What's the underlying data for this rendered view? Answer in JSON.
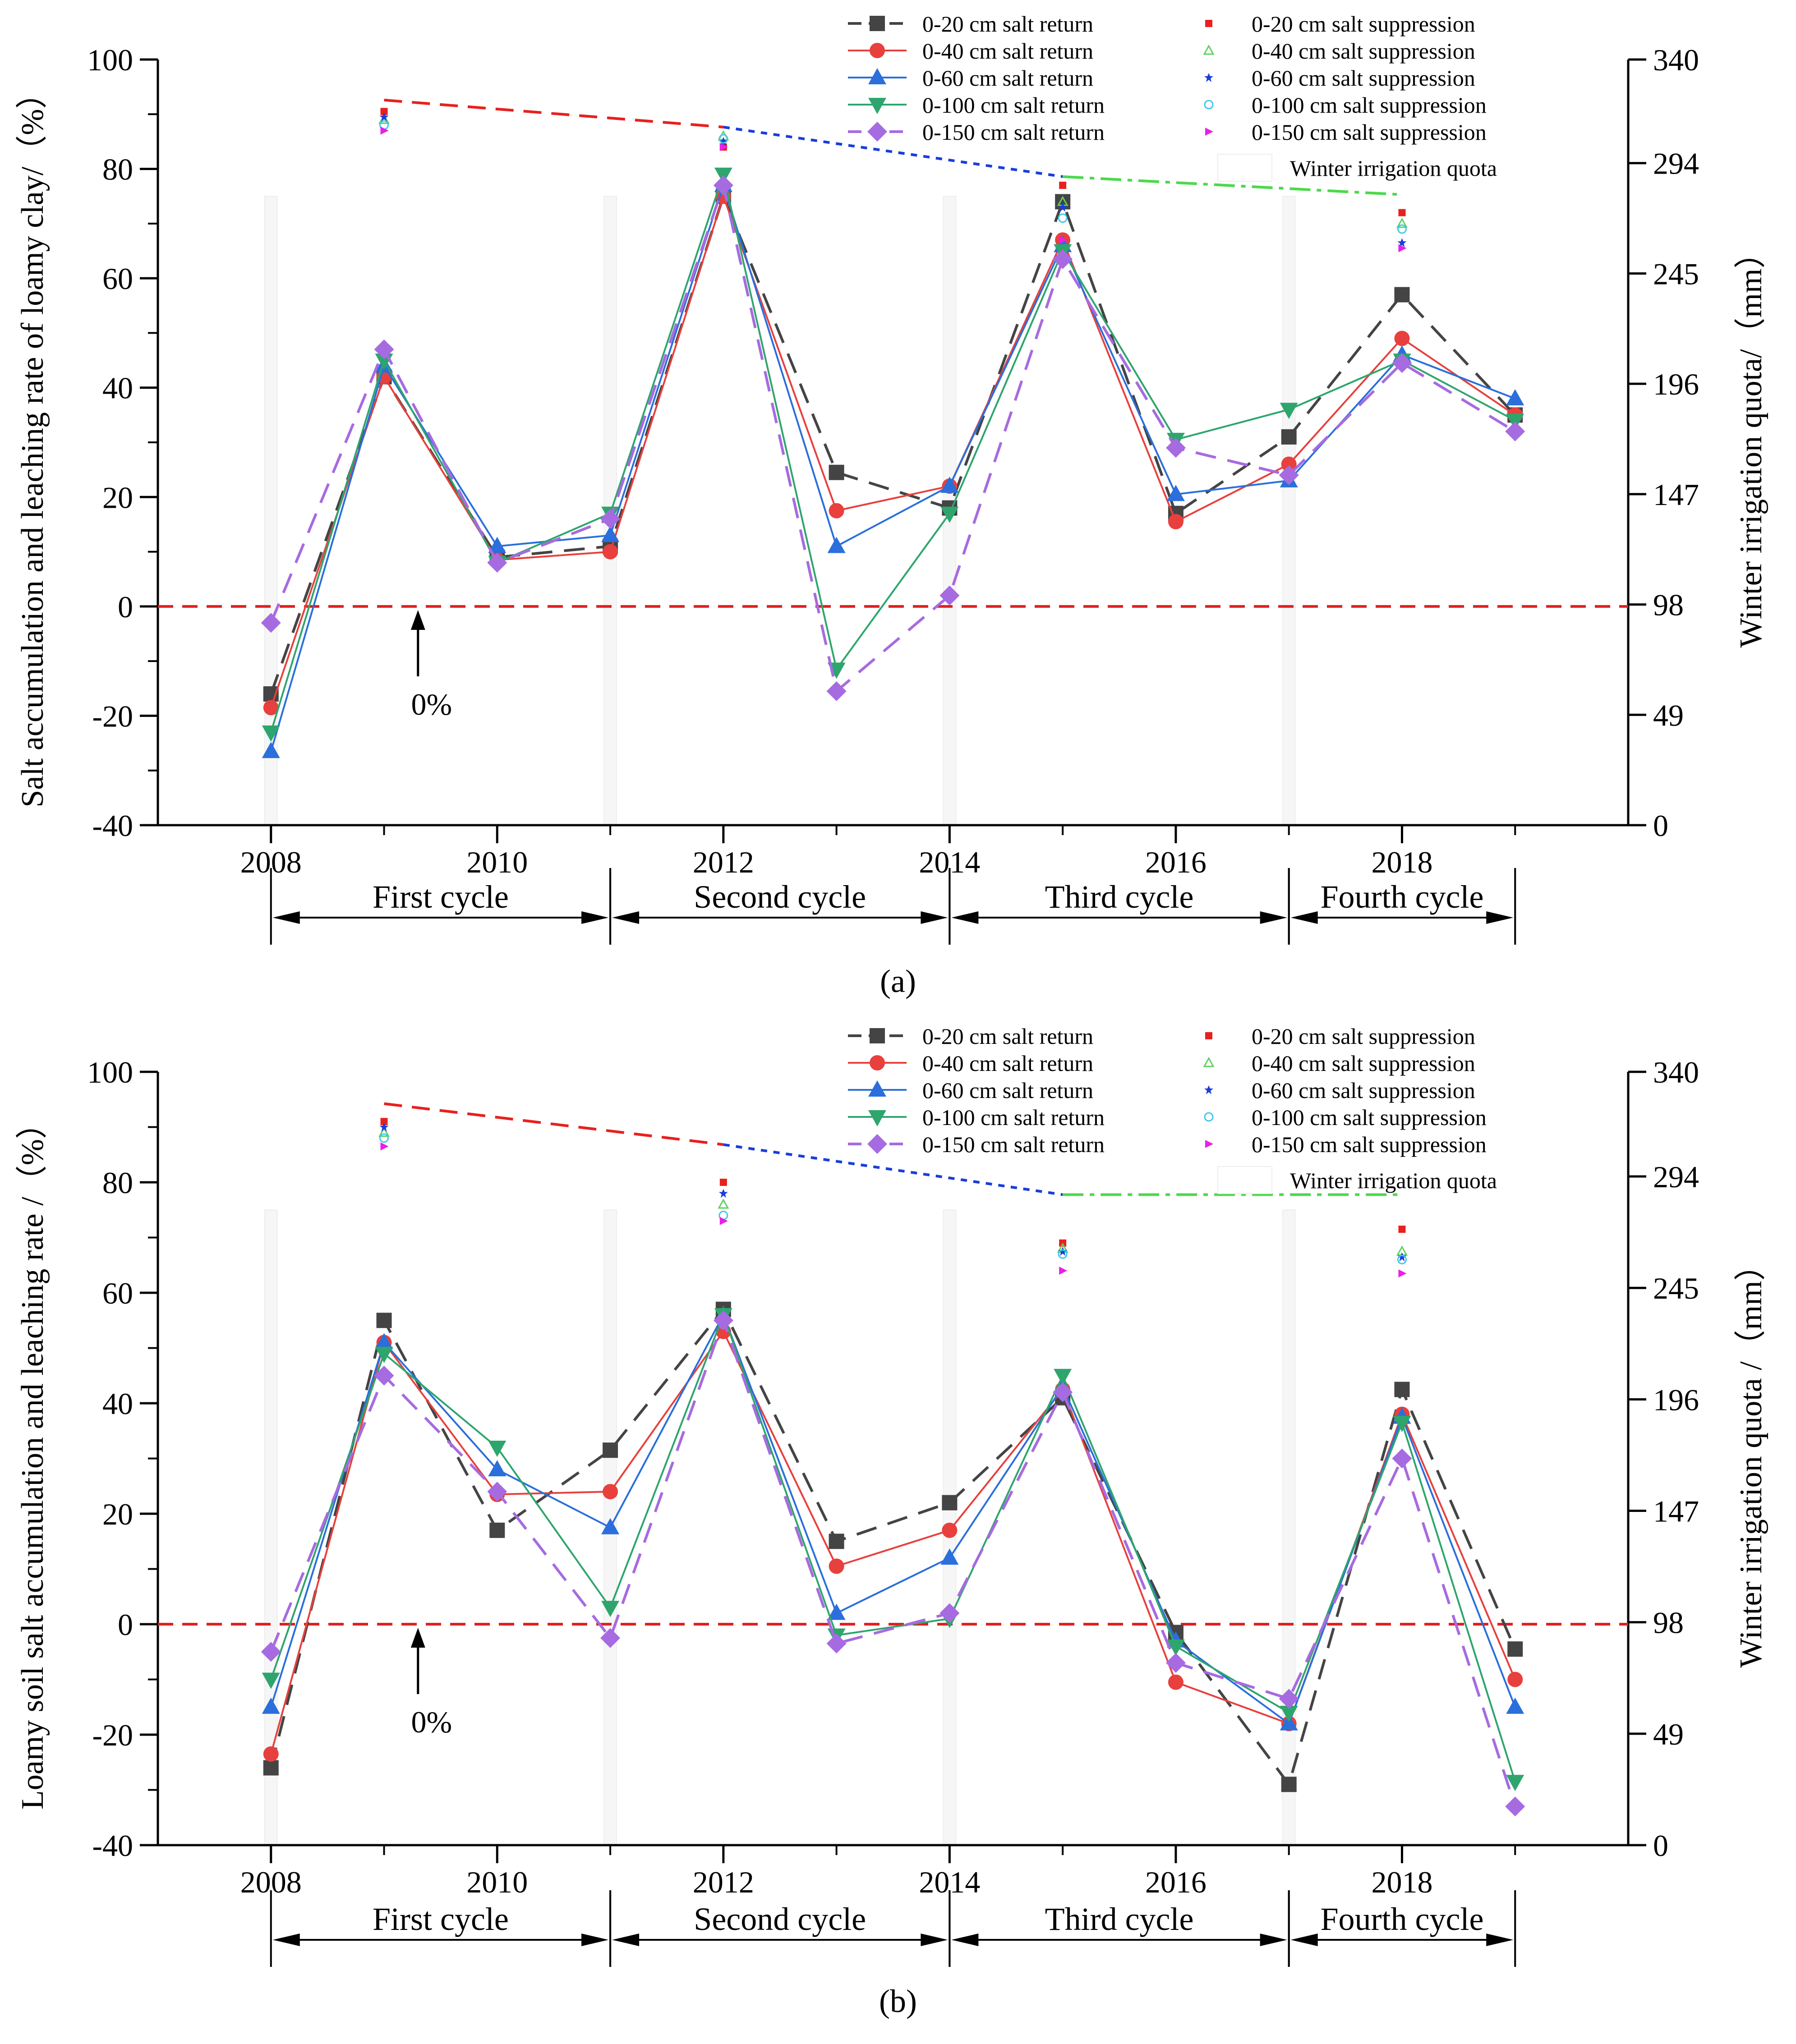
{
  "chart_data": [
    {
      "type": "line",
      "panel_label": "(a)",
      "ylabel_left": "Salt accumulation and leaching rate of loamy clay/（%）",
      "ylabel_right": "Winter irrigation quota/（mm）",
      "xlabel": "",
      "x_ticks": [
        "2008",
        "2010",
        "2012",
        "2014",
        "2016",
        "2018"
      ],
      "y_ticks_left": [
        "-40",
        "-20",
        "0",
        "20",
        "40",
        "60",
        "80",
        "100"
      ],
      "y_ticks_right": [
        "0",
        "49",
        "98",
        "147",
        "196",
        "245",
        "294",
        "340"
      ],
      "ylim_left": [
        -40,
        100
      ],
      "ylim_right": [
        0,
        340
      ],
      "xlim": [
        2007,
        2020
      ],
      "zero_annotation": "0%",
      "cycles": [
        {
          "label": "First cycle",
          "start": 2008,
          "end": 2011
        },
        {
          "label": "Second cycle",
          "start": 2011,
          "end": 2014
        },
        {
          "label": "Third cycle",
          "start": 2014,
          "end": 2017
        },
        {
          "label": "Fourth cycle",
          "start": 2017,
          "end": 2019
        }
      ],
      "series": [
        {
          "name": "0-20 cm salt return",
          "color": "#444444",
          "dash": "dash",
          "marker": "square",
          "x": [
            2008,
            2009,
            2010,
            2011,
            2012,
            2013,
            2014,
            2015,
            2016,
            2017,
            2018,
            2019
          ],
          "values": [
            -16,
            42,
            9,
            11,
            75,
            24.5,
            18,
            74,
            17,
            31,
            57,
            35
          ]
        },
        {
          "name": "0-40 cm salt return",
          "color": "#e8403d",
          "dash": "solid",
          "marker": "circle",
          "x": [
            2008,
            2009,
            2010,
            2011,
            2012,
            2013,
            2014,
            2015,
            2016,
            2017,
            2018,
            2019
          ],
          "values": [
            -18.5,
            42,
            8.5,
            10,
            75,
            17.5,
            22,
            67,
            15.5,
            26,
            49,
            35
          ]
        },
        {
          "name": "0-60 cm salt return",
          "color": "#2a6fdb",
          "dash": "solid",
          "marker": "triangle-up",
          "x": [
            2008,
            2009,
            2010,
            2011,
            2012,
            2013,
            2014,
            2015,
            2016,
            2017,
            2018,
            2019
          ],
          "values": [
            -26.5,
            44,
            11,
            13,
            77,
            11,
            22,
            66,
            20.5,
            23,
            46,
            38
          ]
        },
        {
          "name": "0-100 cm salt return",
          "color": "#2ea56d",
          "dash": "solid",
          "marker": "triangle-down",
          "x": [
            2008,
            2009,
            2010,
            2011,
            2012,
            2013,
            2014,
            2015,
            2016,
            2017,
            2018,
            2019
          ],
          "values": [
            -23,
            45,
            8,
            17,
            79,
            -11.5,
            17,
            65,
            30.5,
            36,
            45,
            34
          ]
        },
        {
          "name": "0-150 cm salt return",
          "color": "#a66be0",
          "dash": "dash",
          "marker": "diamond",
          "x": [
            2008,
            2009,
            2010,
            2011,
            2012,
            2013,
            2014,
            2015,
            2016,
            2017,
            2018,
            2019
          ],
          "values": [
            -3,
            47,
            8,
            16,
            77,
            -15.5,
            2,
            63.5,
            29,
            24,
            44.5,
            32
          ]
        }
      ],
      "suppression_series": [
        {
          "name": "0-20 cm salt suppression",
          "color": "#e8201e",
          "marker": "square-small",
          "x": [
            2009,
            2012,
            2015,
            2018
          ],
          "values": [
            90.5,
            84,
            77,
            72
          ]
        },
        {
          "name": "0-40 cm salt suppression",
          "color": "#5fd15f",
          "marker": "triangle-open",
          "x": [
            2009,
            2012,
            2015,
            2018
          ],
          "values": [
            89,
            86,
            74,
            70
          ]
        },
        {
          "name": "0-60 cm salt suppression",
          "color": "#1a3ddb",
          "marker": "star",
          "x": [
            2009,
            2012,
            2015,
            2018
          ],
          "values": [
            89.5,
            85,
            73,
            66.5
          ]
        },
        {
          "name": "0-100 cm salt suppression",
          "color": "#40c8e8",
          "marker": "circle-open",
          "x": [
            2009,
            2012,
            2015,
            2018
          ],
          "values": [
            88,
            85.5,
            71,
            69
          ]
        },
        {
          "name": "0-150 cm salt suppression",
          "color": "#e820e8",
          "marker": "triangle-right",
          "x": [
            2009,
            2012,
            2015,
            2018
          ],
          "values": [
            87,
            84,
            67,
            65.5
          ]
        }
      ],
      "winter_irrigation_quota": {
        "name": "Winter irrigation quota",
        "x": [
          2009,
          2012,
          2015,
          2018
        ],
        "values": [
          322,
          310,
          288,
          280
        ],
        "segment_colors": [
          "#e8201e",
          "#1a3ddb",
          "#4cd94c"
        ]
      }
    },
    {
      "type": "line",
      "panel_label": "(b)",
      "ylabel_left": "Loamy soil salt accumulation and leaching rate /（%）",
      "ylabel_right": "Winter irrigation quota /（mm）",
      "xlabel": "",
      "x_ticks": [
        "2008",
        "2010",
        "2012",
        "2014",
        "2016",
        "2018"
      ],
      "y_ticks_left": [
        "-40",
        "-20",
        "0",
        "20",
        "40",
        "60",
        "80",
        "100"
      ],
      "y_ticks_right": [
        "0",
        "49",
        "98",
        "147",
        "196",
        "245",
        "294",
        "340"
      ],
      "ylim_left": [
        -40,
        100
      ],
      "ylim_right": [
        0,
        340
      ],
      "xlim": [
        2007,
        2020
      ],
      "zero_annotation": "0%",
      "cycles": [
        {
          "label": "First cycle",
          "start": 2008,
          "end": 2011
        },
        {
          "label": "Second cycle",
          "start": 2011,
          "end": 2014
        },
        {
          "label": "Third cycle",
          "start": 2014,
          "end": 2017
        },
        {
          "label": "Fourth cycle",
          "start": 2017,
          "end": 2019
        }
      ],
      "series": [
        {
          "name": "0-20 cm salt return",
          "color": "#444444",
          "dash": "dash",
          "marker": "square",
          "x": [
            2008,
            2009,
            2010,
            2011,
            2012,
            2013,
            2014,
            2015,
            2016,
            2017,
            2018,
            2019
          ],
          "values": [
            -26,
            55,
            17,
            31.5,
            57,
            15,
            22,
            41,
            -1.5,
            -29,
            42.5,
            -4.5
          ]
        },
        {
          "name": "0-40 cm salt return",
          "color": "#e8403d",
          "dash": "solid",
          "marker": "circle",
          "x": [
            2008,
            2009,
            2010,
            2011,
            2012,
            2013,
            2014,
            2015,
            2016,
            2017,
            2018,
            2019
          ],
          "values": [
            -23.5,
            51,
            23.5,
            24,
            53,
            10.5,
            17,
            42.5,
            -10.5,
            -18,
            38,
            -10
          ]
        },
        {
          "name": "0-60 cm salt return",
          "color": "#2a6fdb",
          "dash": "solid",
          "marker": "triangle-up",
          "x": [
            2008,
            2009,
            2010,
            2011,
            2012,
            2013,
            2014,
            2015,
            2016,
            2017,
            2018,
            2019
          ],
          "values": [
            -15,
            51,
            28,
            17.5,
            56,
            2,
            12,
            43,
            -3,
            -18,
            37.5,
            -15
          ]
        },
        {
          "name": "0-100 cm salt return",
          "color": "#2ea56d",
          "dash": "solid",
          "marker": "triangle-down",
          "x": [
            2008,
            2009,
            2010,
            2011,
            2012,
            2013,
            2014,
            2015,
            2016,
            2017,
            2018,
            2019
          ],
          "values": [
            -10,
            49,
            32,
            3,
            56,
            -2,
            1,
            45,
            -4,
            -16,
            36.5,
            -28.5
          ]
        },
        {
          "name": "0-150 cm salt return",
          "color": "#a66be0",
          "dash": "dash",
          "marker": "diamond",
          "x": [
            2008,
            2009,
            2010,
            2011,
            2012,
            2013,
            2014,
            2015,
            2016,
            2017,
            2018,
            2019
          ],
          "values": [
            -5,
            45,
            24,
            -2.5,
            55,
            -3.5,
            2,
            42,
            -7,
            -13.5,
            30,
            -33
          ]
        }
      ],
      "suppression_series": [
        {
          "name": "0-20 cm salt suppression",
          "color": "#e8201e",
          "marker": "square-small",
          "x": [
            2009,
            2012,
            2015,
            2018
          ],
          "values": [
            91,
            80,
            69,
            71.5
          ]
        },
        {
          "name": "0-40 cm salt suppression",
          "color": "#5fd15f",
          "marker": "triangle-open",
          "x": [
            2009,
            2012,
            2015,
            2018
          ],
          "values": [
            89,
            76,
            68,
            67.5
          ]
        },
        {
          "name": "0-60 cm salt suppression",
          "color": "#1a3ddb",
          "marker": "star",
          "x": [
            2009,
            2012,
            2015,
            2018
          ],
          "values": [
            90,
            78,
            67.5,
            66.5
          ]
        },
        {
          "name": "0-100 cm salt suppression",
          "color": "#40c8e8",
          "marker": "circle-open",
          "x": [
            2009,
            2012,
            2015,
            2018
          ],
          "values": [
            88,
            74,
            67,
            66
          ]
        },
        {
          "name": "0-150 cm salt suppression",
          "color": "#e820e8",
          "marker": "triangle-right",
          "x": [
            2009,
            2012,
            2015,
            2018
          ],
          "values": [
            86.5,
            73,
            64,
            63.5
          ]
        }
      ],
      "winter_irrigation_quota": {
        "name": "Winter irrigation quota",
        "x": [
          2009,
          2012,
          2015,
          2018
        ],
        "values": [
          326,
          308,
          286,
          286
        ],
        "segment_colors": [
          "#e8201e",
          "#1a3ddb",
          "#4cd94c"
        ]
      }
    }
  ]
}
